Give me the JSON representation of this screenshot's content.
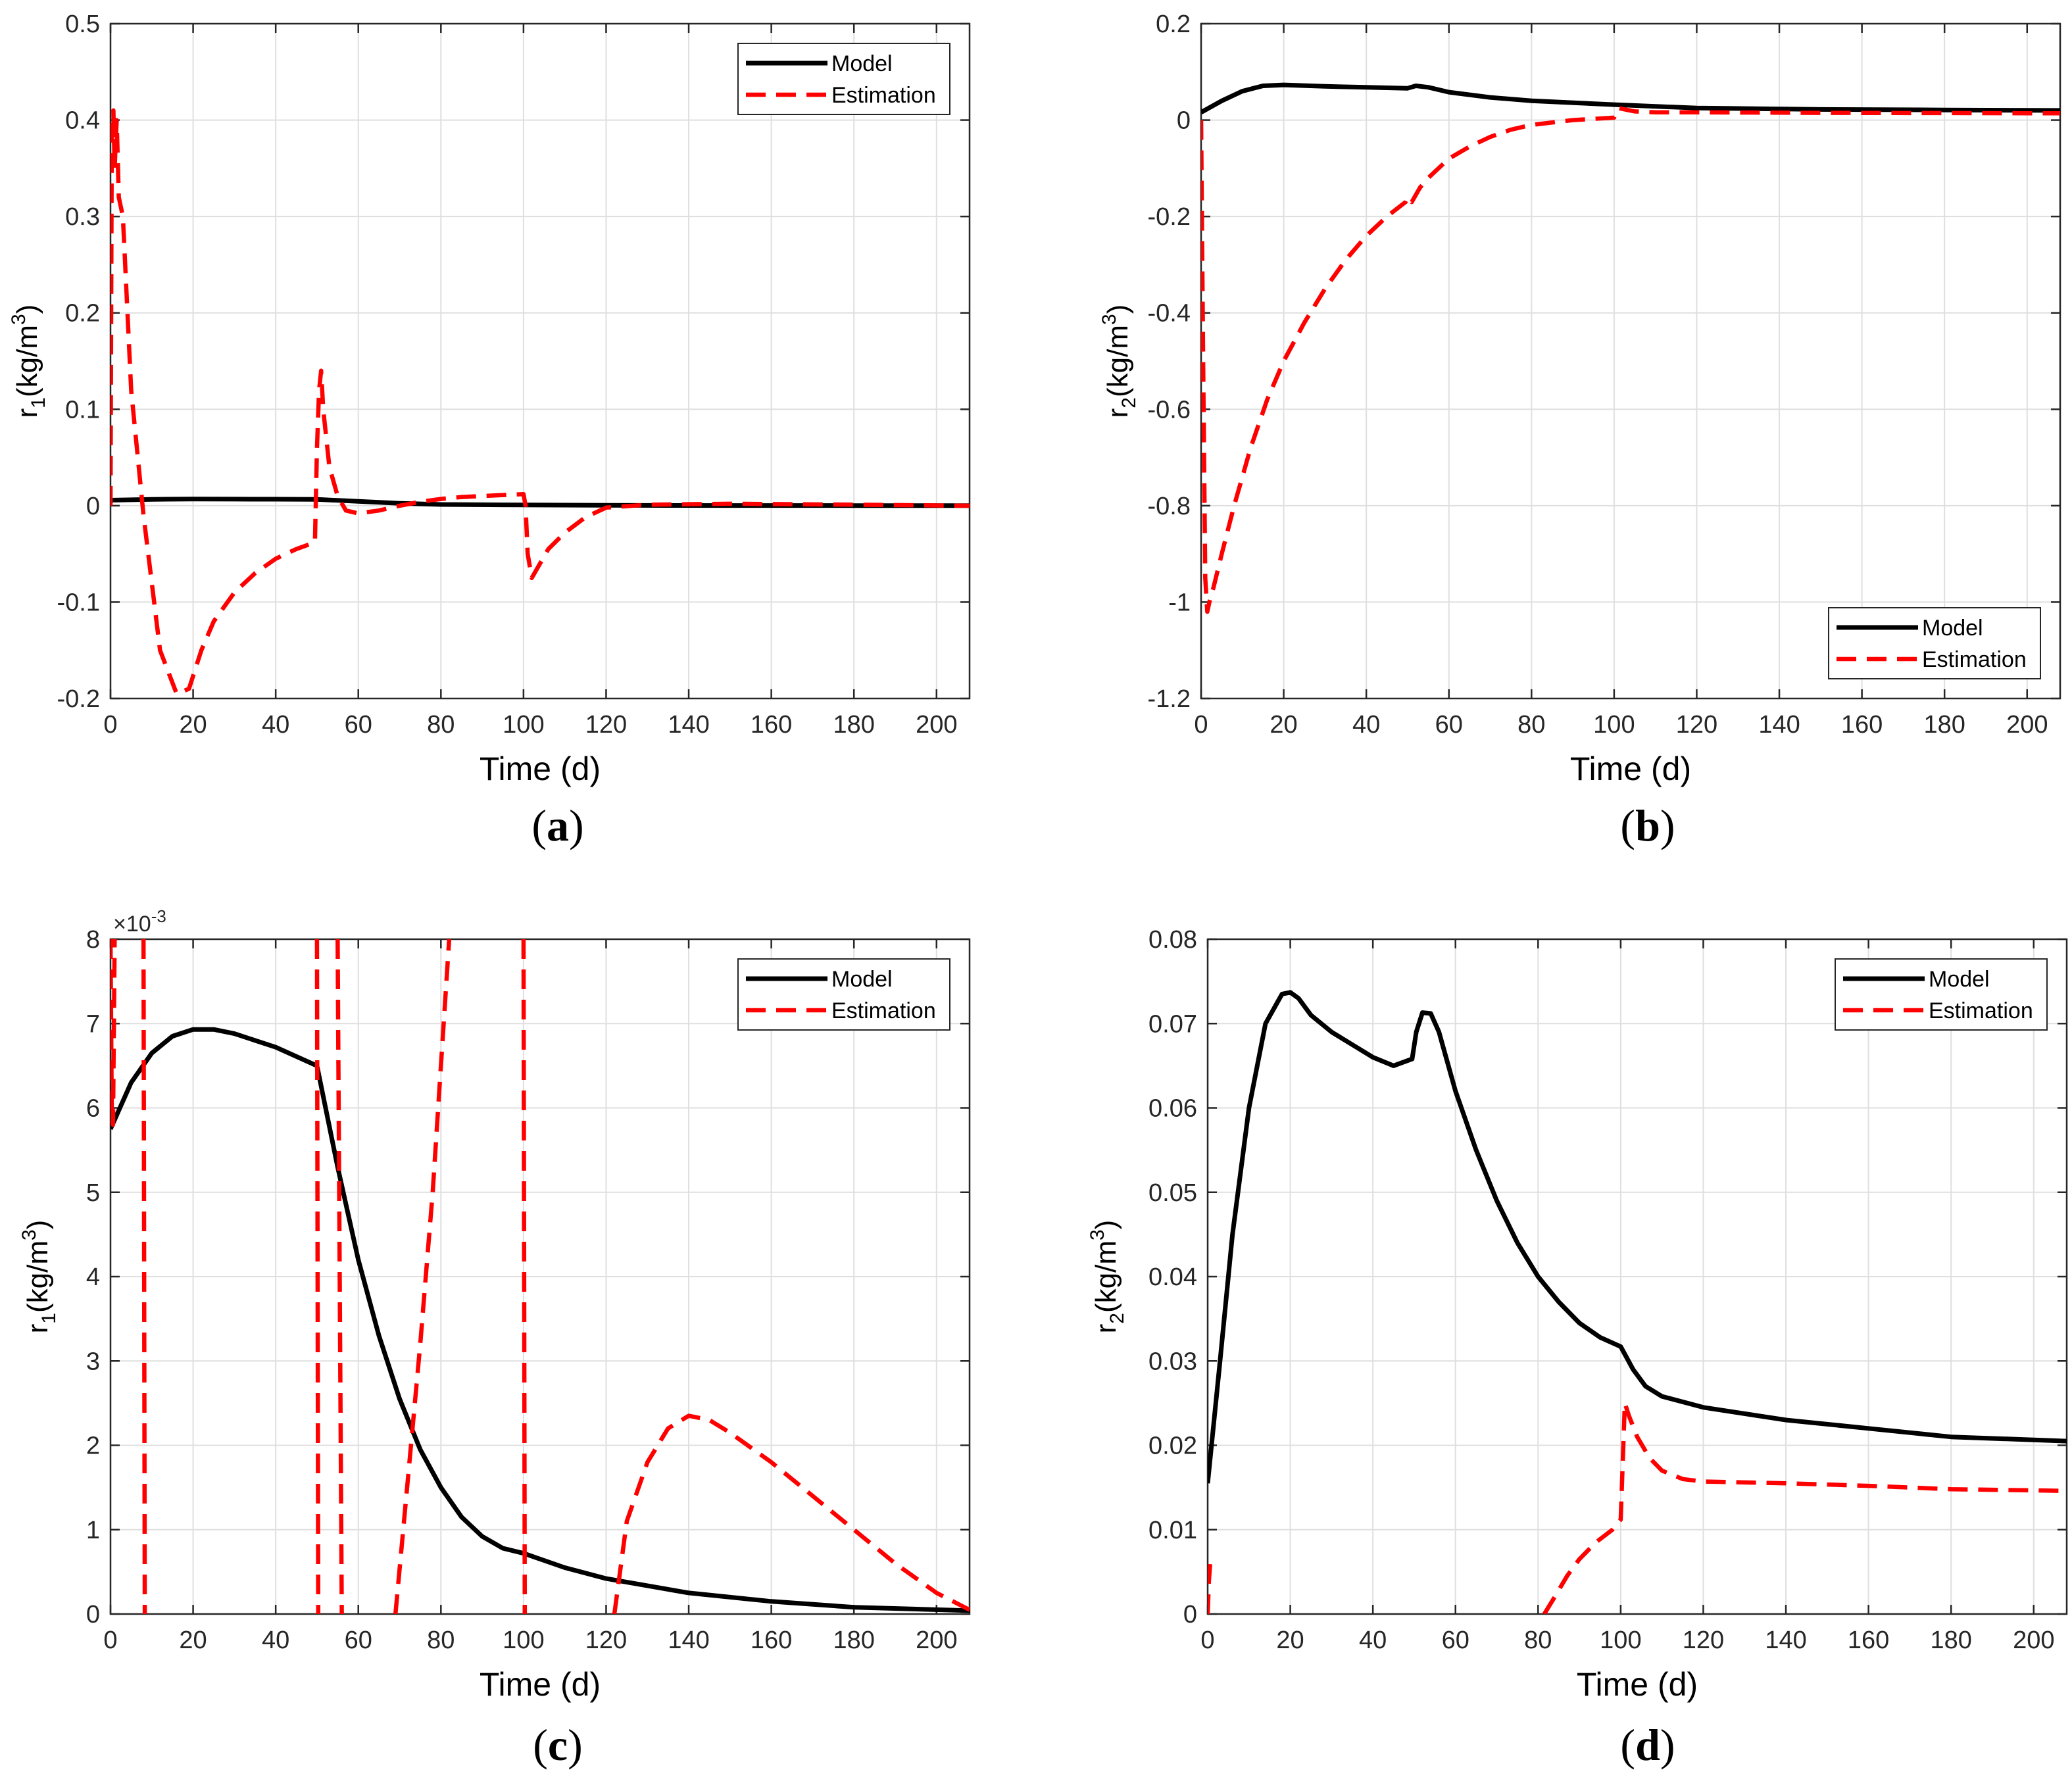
{
  "colors": {
    "model": "#000000",
    "estimation": "#ff0000",
    "grid": "#dfdfdf",
    "axis": "#262626"
  },
  "chart_data": [
    {
      "id": "a",
      "type": "line",
      "caption_letter": "a",
      "xlabel": "Time (d)",
      "ylabel": {
        "main": "r",
        "sub": "1",
        "units_pre": "(kg/m",
        "sup": "3",
        "units_post": ")"
      },
      "xlim": [
        0,
        208
      ],
      "ylim": [
        -0.2,
        0.5
      ],
      "xticks": [
        0,
        20,
        40,
        60,
        80,
        100,
        120,
        140,
        160,
        180,
        200
      ],
      "yticks": [
        -0.2,
        -0.1,
        0,
        0.1,
        0.2,
        0.3,
        0.4,
        0.5
      ],
      "ytick_labels": [
        "-0.2",
        "-0.1",
        "0",
        "0.1",
        "0.2",
        "0.3",
        "0.4",
        "0.5"
      ],
      "legend": {
        "position": "top-right",
        "entries": [
          "Model",
          "Estimation"
        ]
      },
      "grid": true,
      "multiplier": "",
      "series": [
        {
          "name": "Model",
          "style": "solid",
          "x": [
            0,
            10,
            20,
            30,
            40,
            50,
            60,
            70,
            80,
            100,
            120,
            150,
            180,
            208
          ],
          "y": [
            0.0057,
            0.0066,
            0.0069,
            0.0068,
            0.0067,
            0.0065,
            0.0045,
            0.0025,
            0.0013,
            0.0007,
            0.0004,
            0.0002,
            0.0001,
            5e-05
          ]
        },
        {
          "name": "Estimation",
          "style": "dashed",
          "x": [
            0,
            0.3,
            0.7,
            1,
            1.5,
            2,
            3,
            5,
            8,
            12,
            16,
            19,
            22,
            25,
            30,
            35,
            40,
            45,
            49.5,
            50,
            50.5,
            51,
            51.5,
            52,
            53,
            55,
            57,
            60,
            65,
            70,
            75,
            80,
            85,
            90,
            95,
            100,
            100.5,
            101,
            102,
            104,
            106,
            110,
            115,
            120,
            130,
            150,
            180,
            208
          ],
          "y": [
            0.0,
            0.38,
            0.41,
            0.35,
            0.4,
            0.32,
            0.3,
            0.12,
            -0.01,
            -0.15,
            -0.195,
            -0.19,
            -0.15,
            -0.12,
            -0.09,
            -0.07,
            -0.055,
            -0.045,
            -0.038,
            0.06,
            0.12,
            0.14,
            0.1,
            0.08,
            0.04,
            0.01,
            -0.005,
            -0.008,
            -0.005,
            0.0,
            0.004,
            0.007,
            0.009,
            0.01,
            0.011,
            0.012,
            0.0,
            -0.05,
            -0.075,
            -0.06,
            -0.045,
            -0.028,
            -0.012,
            -0.002,
            0.001,
            0.002,
            0.001,
            0.0
          ]
        }
      ]
    },
    {
      "id": "b",
      "type": "line",
      "caption_letter": "b",
      "xlabel": "Time (d)",
      "ylabel": {
        "main": "r",
        "sub": "2",
        "units_pre": "(kg/m",
        "sup": "3",
        "units_post": ")"
      },
      "xlim": [
        0,
        208
      ],
      "ylim": [
        -1.2,
        0.2
      ],
      "xticks": [
        0,
        20,
        40,
        60,
        80,
        100,
        120,
        140,
        160,
        180,
        200
      ],
      "yticks": [
        -1.2,
        -1.0,
        -0.8,
        -0.6,
        -0.4,
        -0.2,
        0,
        0.2
      ],
      "ytick_labels": [
        "-1.2",
        "-1",
        "-0.8",
        "-0.6",
        "-0.4",
        "-0.2",
        "0",
        "0.2"
      ],
      "legend": {
        "position": "bottom-right",
        "entries": [
          "Model",
          "Estimation"
        ]
      },
      "grid": true,
      "multiplier": "",
      "series": [
        {
          "name": "Model",
          "style": "solid",
          "x": [
            0,
            5,
            10,
            15,
            20,
            30,
            40,
            50,
            52,
            55,
            60,
            70,
            80,
            100,
            120,
            150,
            180,
            208
          ],
          "y": [
            0.016,
            0.04,
            0.06,
            0.071,
            0.073,
            0.07,
            0.068,
            0.066,
            0.071,
            0.068,
            0.058,
            0.047,
            0.04,
            0.032,
            0.025,
            0.022,
            0.021,
            0.02
          ]
        },
        {
          "name": "Estimation",
          "style": "dashed",
          "x": [
            0,
            0.5,
            1,
            1.5,
            2,
            3,
            5,
            8,
            12,
            16,
            20,
            25,
            30,
            35,
            40,
            45,
            49.5,
            50,
            51,
            53,
            55,
            60,
            65,
            70,
            75,
            80,
            90,
            100,
            101,
            105,
            110,
            120,
            150,
            180,
            208
          ],
          "y": [
            0.0,
            -0.5,
            -0.95,
            -1.02,
            -1.0,
            -0.97,
            -0.9,
            -0.8,
            -0.68,
            -0.58,
            -0.5,
            -0.42,
            -0.35,
            -0.29,
            -0.24,
            -0.2,
            -0.17,
            -0.16,
            -0.17,
            -0.14,
            -0.12,
            -0.08,
            -0.055,
            -0.035,
            -0.02,
            -0.01,
            0.0,
            0.005,
            0.025,
            0.018,
            0.016,
            0.016,
            0.015,
            0.0145,
            0.014
          ]
        }
      ]
    },
    {
      "id": "c",
      "type": "line",
      "caption_letter": "c",
      "xlabel": "Time (d)",
      "ylabel": {
        "main": "r",
        "sub": "1",
        "units_pre": "(kg/m",
        "sup": "3",
        "units_post": ")"
      },
      "xlim": [
        0,
        208
      ],
      "ylim": [
        0,
        8
      ],
      "xticks": [
        0,
        20,
        40,
        60,
        80,
        100,
        120,
        140,
        160,
        180,
        200
      ],
      "yticks": [
        0,
        1,
        2,
        3,
        4,
        5,
        6,
        7,
        8
      ],
      "ytick_labels": [
        "0",
        "1",
        "2",
        "3",
        "4",
        "5",
        "6",
        "7",
        "8"
      ],
      "legend": {
        "position": "top-right",
        "entries": [
          "Model",
          "Estimation"
        ]
      },
      "grid": true,
      "multiplier": {
        "base": "×10",
        "exp": "-3"
      },
      "series": [
        {
          "name": "Model",
          "style": "solid",
          "x": [
            0,
            5,
            10,
            15,
            20,
            25,
            30,
            40,
            50,
            55,
            60,
            65,
            70,
            75,
            80,
            85,
            90,
            95,
            100,
            110,
            120,
            140,
            160,
            180,
            208
          ],
          "y": [
            5.75,
            6.3,
            6.65,
            6.85,
            6.93,
            6.93,
            6.88,
            6.72,
            6.5,
            5.3,
            4.2,
            3.3,
            2.55,
            1.95,
            1.5,
            1.15,
            0.92,
            0.78,
            0.72,
            0.55,
            0.42,
            0.25,
            0.15,
            0.08,
            0.04
          ]
        },
        {
          "name": "Estimation",
          "style": "dashed",
          "segments": [
            {
              "x": [
                0,
                0.3,
                0.6,
                1
              ],
              "y": [
                8,
                6.0,
                5.8,
                8
              ]
            },
            {
              "x": [
                8,
                8.3
              ],
              "y": [
                8,
                0
              ]
            },
            {
              "x": [
                50,
                50.3
              ],
              "y": [
                8,
                0
              ]
            },
            {
              "x": [
                55,
                56
              ],
              "y": [
                8,
                0
              ]
            },
            {
              "x": [
                69,
                72,
                75,
                78,
                80,
                82
              ],
              "y": [
                0,
                1.6,
                3.2,
                5.0,
                6.5,
                8
              ]
            },
            {
              "x": [
                100,
                100.3
              ],
              "y": [
                8,
                0
              ]
            },
            {
              "x": [
                122,
                125,
                130,
                135,
                140,
                145,
                150,
                160,
                170,
                180,
                190,
                200,
                208
              ],
              "y": [
                0,
                1.1,
                1.8,
                2.2,
                2.35,
                2.3,
                2.15,
                1.8,
                1.4,
                1.0,
                0.6,
                0.25,
                0.05
              ]
            }
          ]
        }
      ]
    },
    {
      "id": "d",
      "type": "line",
      "caption_letter": "d",
      "xlabel": "Time (d)",
      "ylabel": {
        "main": "r",
        "sub": "2",
        "units_pre": "(kg/m",
        "sup": "3",
        "units_post": ")"
      },
      "xlim": [
        0,
        208
      ],
      "ylim": [
        0,
        0.08
      ],
      "xticks": [
        0,
        20,
        40,
        60,
        80,
        100,
        120,
        140,
        160,
        180,
        200
      ],
      "yticks": [
        0,
        0.01,
        0.02,
        0.03,
        0.04,
        0.05,
        0.06,
        0.07,
        0.08
      ],
      "ytick_labels": [
        "0",
        "0.01",
        "0.02",
        "0.03",
        "0.04",
        "0.05",
        "0.06",
        "0.07",
        "0.08"
      ],
      "legend": {
        "position": "top-right",
        "entries": [
          "Model",
          "Estimation"
        ]
      },
      "grid": true,
      "multiplier": "",
      "series": [
        {
          "name": "Model",
          "style": "solid",
          "x": [
            0,
            3,
            6,
            10,
            14,
            18,
            20,
            22,
            25,
            30,
            35,
            40,
            45,
            49.5,
            50.5,
            52,
            54,
            56,
            60,
            65,
            70,
            75,
            80,
            85,
            90,
            95,
            100,
            103,
            106,
            110,
            120,
            140,
            160,
            180,
            208
          ],
          "y": [
            0.0155,
            0.03,
            0.045,
            0.06,
            0.07,
            0.0735,
            0.0737,
            0.073,
            0.071,
            0.069,
            0.0675,
            0.066,
            0.065,
            0.0658,
            0.069,
            0.0713,
            0.0712,
            0.069,
            0.062,
            0.055,
            0.049,
            0.044,
            0.04,
            0.037,
            0.0345,
            0.0328,
            0.0317,
            0.029,
            0.027,
            0.0258,
            0.0245,
            0.023,
            0.022,
            0.021,
            0.0205
          ]
        },
        {
          "name": "Estimation",
          "style": "dashed",
          "segments": [
            {
              "x": [
                0,
                0.3,
                0.6
              ],
              "y": [
                0.0,
                0.004,
                0.006
              ]
            },
            {
              "x": [
                81.5,
                84,
                87,
                90,
                94,
                98,
                100,
                100.5,
                101,
                102,
                104,
                107,
                110,
                115,
                120,
                140,
                160,
                180,
                208
              ],
              "y": [
                0.0,
                0.002,
                0.0045,
                0.0065,
                0.0085,
                0.01,
                0.0112,
                0.018,
                0.025,
                0.0235,
                0.021,
                0.0185,
                0.017,
                0.016,
                0.0157,
                0.0155,
                0.0152,
                0.0148,
                0.0146
              ]
            }
          ]
        }
      ]
    }
  ]
}
